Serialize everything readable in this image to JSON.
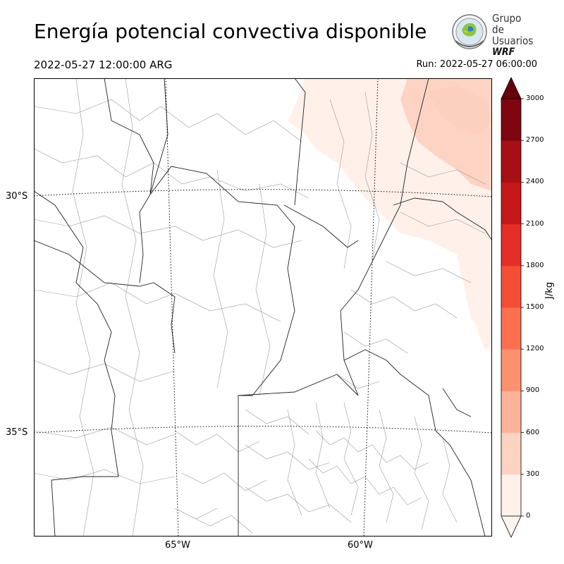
{
  "header": {
    "title": "Energía potencial convectiva disponible",
    "valid_time": "2022-05-27 12:00:00 ARG",
    "run_time": "Run: 2022-05-27 06:00:00"
  },
  "logo": {
    "line1": "Grupo de",
    "line2": "Usuarios",
    "line3": "WRF"
  },
  "map": {
    "latitude_labels": [
      "30°S",
      "35°S"
    ],
    "longitude_labels": [
      "65°W",
      "60°W"
    ]
  },
  "colorbar": {
    "units": "J/kg",
    "ticks": [
      "0",
      "300",
      "600",
      "900",
      "1200",
      "1500",
      "1800",
      "2100",
      "2400",
      "2700",
      "3000"
    ],
    "colors": [
      "#fff0ea",
      "#fdd3c3",
      "#fcb399",
      "#fc9170",
      "#fb7050",
      "#f44e37",
      "#e32f27",
      "#c6171b",
      "#a50f15",
      "#7e0610"
    ],
    "over_color": "#67000d",
    "under_color": "#fff5f0"
  }
}
